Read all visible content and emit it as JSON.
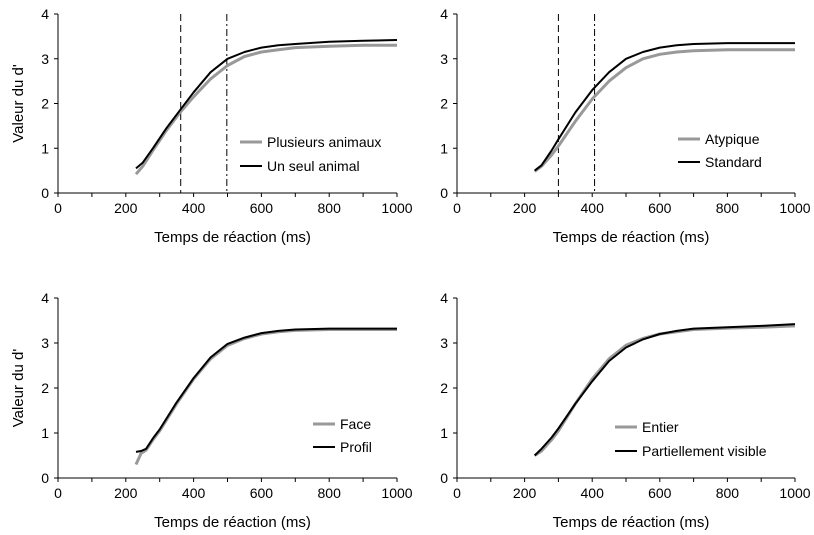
{
  "chart_data": [
    {
      "type": "line",
      "xlabel": "Temps de réaction (ms)",
      "ylabel": "Valeur du d'",
      "xlim": [
        0,
        1000
      ],
      "ylim": [
        0,
        4
      ],
      "xticks": [
        0,
        200,
        400,
        600,
        800,
        1000
      ],
      "yticks": [
        0,
        1,
        2,
        3,
        4
      ],
      "vlines": [
        {
          "x": 362,
          "style": "dashed"
        },
        {
          "x": 498,
          "style": "dashdot"
        }
      ],
      "legend_position": "bottom-right",
      "series": [
        {
          "name": "Plusieurs animaux",
          "color": "#999999",
          "x": [
            230,
            250,
            280,
            320,
            360,
            400,
            450,
            500,
            550,
            600,
            650,
            700,
            800,
            900,
            1000
          ],
          "y": [
            0.42,
            0.6,
            0.95,
            1.4,
            1.8,
            2.15,
            2.55,
            2.85,
            3.05,
            3.15,
            3.2,
            3.25,
            3.28,
            3.3,
            3.3
          ]
        },
        {
          "name": "Un seul animal",
          "color": "#000000",
          "x": [
            230,
            250,
            280,
            320,
            360,
            400,
            450,
            500,
            550,
            600,
            650,
            700,
            800,
            900,
            1000
          ],
          "y": [
            0.55,
            0.68,
            1.0,
            1.45,
            1.85,
            2.25,
            2.7,
            3.0,
            3.15,
            3.25,
            3.3,
            3.33,
            3.38,
            3.4,
            3.42
          ]
        }
      ]
    },
    {
      "type": "line",
      "xlabel": "Temps de réaction (ms)",
      "ylabel": "",
      "xlim": [
        0,
        1000
      ],
      "ylim": [
        0,
        4
      ],
      "xticks": [
        0,
        200,
        400,
        600,
        800,
        1000
      ],
      "yticks": [
        0,
        1,
        2,
        3,
        4
      ],
      "vlines": [
        {
          "x": 300,
          "style": "dashed"
        },
        {
          "x": 407,
          "style": "dashdot"
        }
      ],
      "legend_position": "bottom-right",
      "series": [
        {
          "name": "Atypique",
          "color": "#999999",
          "x": [
            230,
            250,
            280,
            300,
            350,
            400,
            450,
            500,
            550,
            600,
            650,
            700,
            800,
            900,
            1000
          ],
          "y": [
            0.48,
            0.6,
            0.85,
            1.05,
            1.6,
            2.1,
            2.5,
            2.8,
            3.0,
            3.1,
            3.15,
            3.18,
            3.2,
            3.2,
            3.2
          ]
        },
        {
          "name": "Standard",
          "color": "#000000",
          "x": [
            230,
            250,
            280,
            300,
            350,
            400,
            450,
            500,
            550,
            600,
            650,
            700,
            800,
            900,
            1000
          ],
          "y": [
            0.5,
            0.62,
            0.95,
            1.2,
            1.8,
            2.3,
            2.7,
            3.0,
            3.15,
            3.25,
            3.3,
            3.33,
            3.35,
            3.35,
            3.35
          ]
        }
      ]
    },
    {
      "type": "line",
      "xlabel": "Temps de réaction (ms)",
      "ylabel": "Valeur du d'",
      "xlim": [
        0,
        1000
      ],
      "ylim": [
        0,
        4
      ],
      "xticks": [
        0,
        200,
        400,
        600,
        800,
        1000
      ],
      "yticks": [
        0,
        1,
        2,
        3,
        4
      ],
      "vlines": [],
      "legend_position": "bottom-right",
      "series": [
        {
          "name": "Face",
          "color": "#999999",
          "x": [
            230,
            245,
            260,
            280,
            300,
            350,
            400,
            450,
            500,
            550,
            600,
            650,
            700,
            800,
            900,
            1000
          ],
          "y": [
            0.3,
            0.55,
            0.62,
            0.85,
            1.05,
            1.65,
            2.2,
            2.65,
            2.95,
            3.1,
            3.2,
            3.25,
            3.28,
            3.3,
            3.3,
            3.3
          ]
        },
        {
          "name": "Profil",
          "color": "#000000",
          "x": [
            230,
            245,
            260,
            280,
            300,
            350,
            400,
            450,
            500,
            550,
            600,
            650,
            700,
            800,
            900,
            1000
          ],
          "y": [
            0.58,
            0.6,
            0.65,
            0.88,
            1.08,
            1.68,
            2.22,
            2.68,
            2.98,
            3.12,
            3.22,
            3.27,
            3.3,
            3.32,
            3.32,
            3.32
          ]
        }
      ]
    },
    {
      "type": "line",
      "xlabel": "Temps de réaction (ms)",
      "ylabel": "",
      "xlim": [
        0,
        1000
      ],
      "ylim": [
        0,
        4
      ],
      "xticks": [
        0,
        200,
        400,
        600,
        800,
        1000
      ],
      "yticks": [
        0,
        1,
        2,
        3,
        4
      ],
      "vlines": [],
      "legend_position": "bottom-right",
      "series": [
        {
          "name": "Entier",
          "color": "#999999",
          "x": [
            230,
            250,
            280,
            300,
            350,
            400,
            450,
            500,
            550,
            600,
            650,
            700,
            800,
            900,
            1000
          ],
          "y": [
            0.5,
            0.6,
            0.85,
            1.05,
            1.65,
            2.2,
            2.65,
            2.95,
            3.1,
            3.2,
            3.25,
            3.3,
            3.33,
            3.35,
            3.38
          ]
        },
        {
          "name": "Partiellement visible",
          "color": "#000000",
          "x": [
            230,
            250,
            280,
            300,
            350,
            400,
            450,
            500,
            550,
            600,
            650,
            700,
            800,
            900,
            1000
          ],
          "y": [
            0.5,
            0.65,
            0.9,
            1.1,
            1.65,
            2.15,
            2.6,
            2.9,
            3.08,
            3.2,
            3.27,
            3.32,
            3.35,
            3.38,
            3.42
          ]
        }
      ]
    }
  ]
}
